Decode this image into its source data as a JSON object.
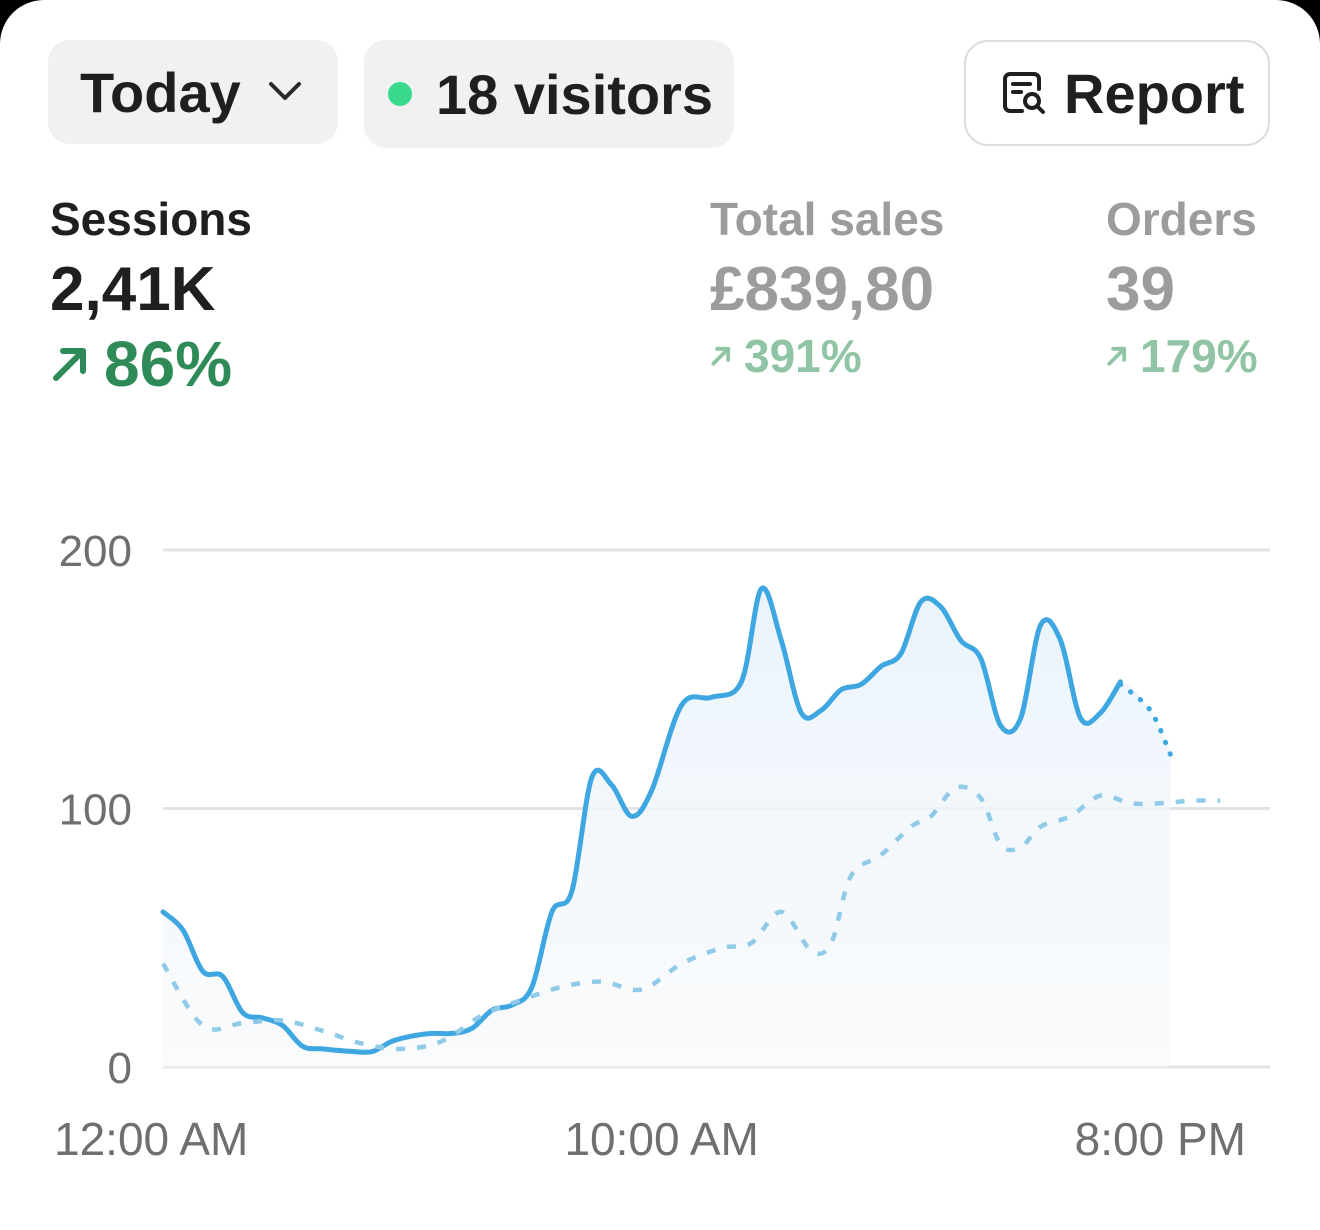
{
  "header": {
    "date_range": "Today",
    "visitors": "18 visitors",
    "report_label": "Report"
  },
  "metrics": [
    {
      "label": "Sessions",
      "value": "2,41K",
      "change": "86%",
      "active": true
    },
    {
      "label": "Total sales",
      "value": "£839,80",
      "change": "391%",
      "active": false
    },
    {
      "label": "Orders",
      "value": "39",
      "change": "179%",
      "active": false
    }
  ],
  "colors": {
    "line": "#3ea6e0",
    "comparison": "#8fcbe8",
    "positive": "#2e8b57",
    "live_dot": "#38d98a"
  },
  "chart_data": {
    "type": "line",
    "title": "",
    "xlabel": "",
    "ylabel": "",
    "ylim": [
      0,
      200
    ],
    "yticks": [
      "200",
      "100",
      "0"
    ],
    "yticks_values": [
      200,
      100,
      0
    ],
    "xticks": [
      "12:00 AM",
      "10:00 AM",
      "8:00 PM"
    ],
    "xticks_values": [
      0,
      10,
      20
    ],
    "xlim": [
      0,
      22.2
    ],
    "grid": true,
    "series": [
      {
        "values": [
          [
            0,
            60
          ],
          [
            0.4,
            53
          ],
          [
            0.8,
            37
          ],
          [
            1.2,
            35
          ],
          [
            1.6,
            21
          ],
          [
            2.0,
            19
          ],
          [
            2.4,
            16
          ],
          [
            2.8,
            8
          ],
          [
            3.2,
            7
          ],
          [
            3.8,
            6
          ],
          [
            4.2,
            6
          ],
          [
            4.6,
            10
          ],
          [
            5.0,
            12
          ],
          [
            5.4,
            13
          ],
          [
            5.8,
            13
          ],
          [
            6.2,
            15
          ],
          [
            6.6,
            22
          ],
          [
            7.0,
            24
          ],
          [
            7.4,
            31
          ],
          [
            7.8,
            60
          ],
          [
            8.2,
            68
          ],
          [
            8.6,
            112
          ],
          [
            9.0,
            109
          ],
          [
            9.4,
            97
          ],
          [
            9.8,
            107
          ],
          [
            10.4,
            140
          ],
          [
            11.0,
            143
          ],
          [
            11.6,
            149
          ],
          [
            12.0,
            185
          ],
          [
            12.4,
            165
          ],
          [
            12.8,
            137
          ],
          [
            13.2,
            138
          ],
          [
            13.6,
            146
          ],
          [
            14.0,
            148
          ],
          [
            14.4,
            155
          ],
          [
            14.8,
            160
          ],
          [
            15.2,
            180
          ],
          [
            15.6,
            178
          ],
          [
            16.0,
            165
          ],
          [
            16.4,
            158
          ],
          [
            16.8,
            132
          ],
          [
            17.2,
            135
          ],
          [
            17.6,
            171
          ],
          [
            18.0,
            165
          ],
          [
            18.4,
            135
          ],
          [
            18.8,
            137
          ],
          [
            19.2,
            149
          ]
        ],
        "style": "solid"
      },
      {
        "values": [
          [
            19.2,
            148
          ],
          [
            19.8,
            138
          ],
          [
            20.2,
            121
          ]
        ],
        "style": "dotted"
      },
      {
        "values": [
          [
            0,
            40
          ],
          [
            0.8,
            16
          ],
          [
            1.6,
            17
          ],
          [
            2.4,
            18
          ],
          [
            3.2,
            14
          ],
          [
            4.0,
            9
          ],
          [
            4.8,
            7
          ],
          [
            5.6,
            10
          ],
          [
            6.4,
            20
          ],
          [
            7.2,
            26
          ],
          [
            8.0,
            31
          ],
          [
            8.8,
            33
          ],
          [
            9.6,
            30
          ],
          [
            10.4,
            40
          ],
          [
            11.2,
            46
          ],
          [
            11.8,
            48
          ],
          [
            12.4,
            60
          ],
          [
            13.0,
            45
          ],
          [
            13.4,
            48
          ],
          [
            13.8,
            74
          ],
          [
            14.4,
            82
          ],
          [
            15.0,
            93
          ],
          [
            15.4,
            97
          ],
          [
            15.9,
            108
          ],
          [
            16.4,
            104
          ],
          [
            16.8,
            86
          ],
          [
            17.2,
            85
          ],
          [
            17.6,
            93
          ],
          [
            18.2,
            97
          ],
          [
            18.8,
            105
          ],
          [
            19.4,
            102
          ],
          [
            20.0,
            102
          ],
          [
            20.6,
            103
          ],
          [
            21.2,
            103
          ]
        ],
        "style": "dashed"
      }
    ]
  }
}
